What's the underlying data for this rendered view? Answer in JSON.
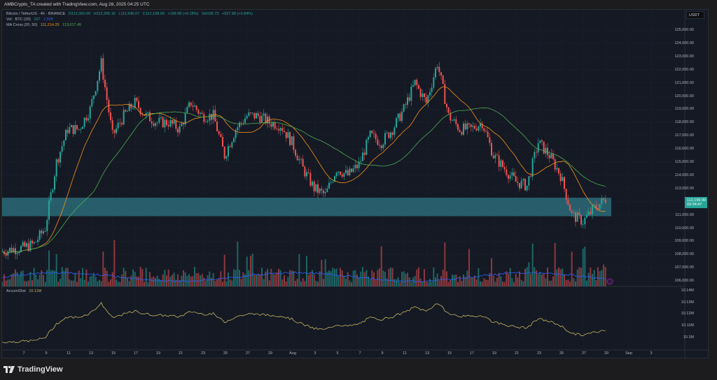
{
  "header": {
    "title": "AMBCrypto_TA created with TradingView.com, Aug 28, 2025 04:25 UTC"
  },
  "legend": {
    "symbol": "Bitcoin / TetherUS · 4h · BINANCE",
    "open": "O112,000.00",
    "high": "H112,206.16",
    "low": "L111,945.07",
    "close": "C112,199.99",
    "change": "+199.98 (+0.18%)",
    "vol": "Vol156.73",
    "vol_change": "+927.98 (+0.84%)",
    "vol_label": "Vol · BTC (20)",
    "vol_v1": "157",
    "vol_v2": "2.92K",
    "ma_label": "MA Cross (20, 50)",
    "ma20": "111,214.25",
    "ma50": "113,017.45",
    "ad_label": "Accum/Dist",
    "ad_value": "10.11M"
  },
  "currency": "USDT",
  "price_tag": {
    "price": "112,199.99",
    "countdown": "03:34:47"
  },
  "price_axis": [
    "125,000.00",
    "124,000.00",
    "123,000.00",
    "122,000.00",
    "121,000.00",
    "120,000.00",
    "119,000.00",
    "118,000.00",
    "117,000.00",
    "116,000.00",
    "115,000.00",
    "114,000.00",
    "113,000.00",
    "111,000.00",
    "110,000.00",
    "109,000.00",
    "108,000.00",
    "107,000.00",
    "106,000.00"
  ],
  "ad_axis": [
    "10.14M",
    "10.13M",
    "10.12M",
    "10.11M",
    "10.1M"
  ],
  "time_axis": [
    "7",
    "9",
    "11",
    "13",
    "15",
    "17",
    "19",
    "21",
    "23",
    "25",
    "27",
    "29",
    "Aug",
    "3",
    "5",
    "7",
    "9",
    "11",
    "13",
    "15",
    "17",
    "19",
    "21",
    "23",
    "25",
    "27",
    "29",
    "Sep",
    "3"
  ],
  "footer": {
    "brand": "TradingView"
  },
  "colors": {
    "up": "#26a69a",
    "down": "#ef5350",
    "ma20": "#f7931a",
    "ma50": "#4caf50",
    "zone": "#2c6b78",
    "ad": "#c8b560"
  },
  "chart_data": {
    "type": "candlestick",
    "interval": "4h",
    "start_date": "2025-07-05",
    "daily_close_approx": [
      108200,
      108400,
      108500,
      108800,
      110000,
      115000,
      117500,
      117500,
      119000,
      122500,
      117000,
      118500,
      119500,
      118500,
      118000,
      118000,
      117500,
      119500,
      118500,
      118500,
      115500,
      117500,
      118500,
      118500,
      118000,
      117800,
      116500,
      114500,
      113000,
      112500,
      114500,
      114000,
      114800,
      117000,
      116500,
      117500,
      119000,
      121000,
      119500,
      122500,
      118500,
      117500,
      117500,
      118000,
      115500,
      114500,
      113500,
      113200,
      116500,
      115500,
      114000,
      111000,
      110500,
      111500,
      112200
    ],
    "highlight_zone": [
      110900,
      112300
    ],
    "ylim": [
      105700,
      125500
    ],
    "indicators": [
      "MA 20",
      "MA 50",
      "Volume",
      "Accum/Dist"
    ]
  }
}
